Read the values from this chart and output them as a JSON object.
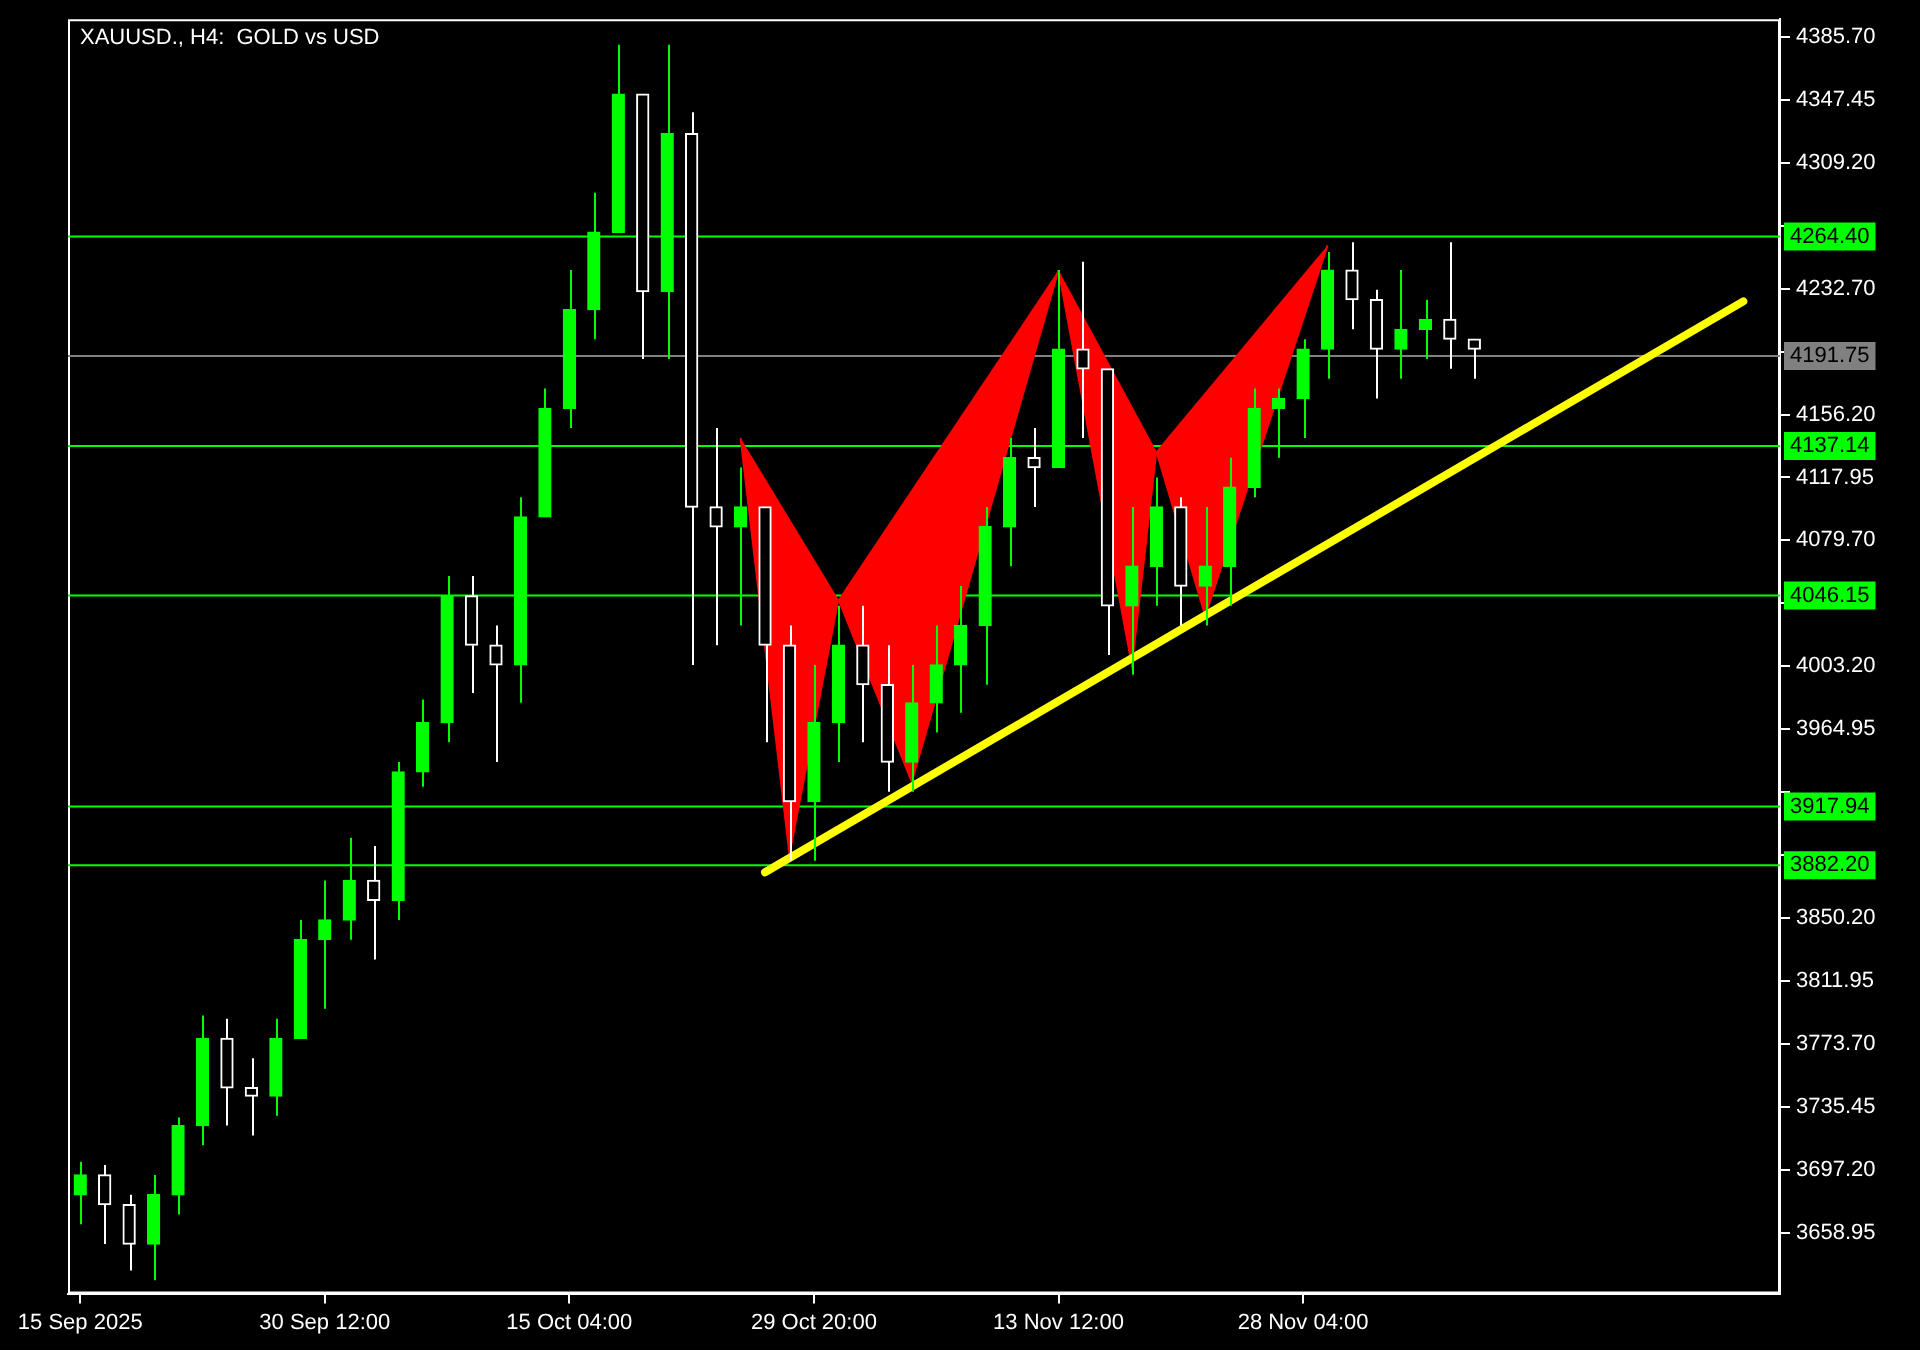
{
  "chart_data": {
    "type": "candlestick",
    "title": "XAUUSD., H4:  GOLD vs USD",
    "categories": [
      "15 Sep 2025",
      null,
      null,
      null,
      null,
      null,
      null,
      null,
      null,
      null,
      "30 Sep 12:00",
      null,
      null,
      null,
      null,
      null,
      null,
      null,
      null,
      null,
      "15 Oct 04:00",
      null,
      null,
      null,
      null,
      null,
      null,
      null,
      null,
      null,
      "29 Oct 20:00",
      null,
      null,
      null,
      null,
      null,
      null,
      null,
      null,
      null,
      "13 Nov 12:00",
      null,
      null,
      null,
      null,
      null,
      null,
      null,
      null,
      null,
      "28 Nov 04:00",
      null,
      null,
      null,
      null,
      null,
      null,
      null,
      null,
      null,
      null,
      null,
      null,
      null,
      null,
      null,
      null,
      null,
      null,
      null
    ],
    "ohlc": [
      [
        3682,
        3702,
        3664,
        3694
      ],
      [
        3694,
        3700,
        3652,
        3676
      ],
      [
        3676,
        3682,
        3636,
        3652
      ],
      [
        3652,
        3694,
        3630,
        3682
      ],
      [
        3682,
        3729,
        3670,
        3724
      ],
      [
        3724,
        3791,
        3712,
        3777
      ],
      [
        3777,
        3789,
        3724,
        3747
      ],
      [
        3747,
        3765,
        3718,
        3742
      ],
      [
        3742,
        3789,
        3730,
        3777
      ],
      [
        3777,
        3849,
        3777,
        3837
      ],
      [
        3837,
        3873,
        3795,
        3849
      ],
      [
        3849,
        3899,
        3837,
        3873
      ],
      [
        3873,
        3894,
        3825,
        3861
      ],
      [
        3861,
        3945,
        3849,
        3939
      ],
      [
        3939,
        3983,
        3930,
        3969
      ],
      [
        3969,
        4058,
        3957,
        4046
      ],
      [
        4046,
        4058,
        3987,
        4016
      ],
      [
        4016,
        4028,
        3945,
        4004
      ],
      [
        4004,
        4106,
        3981,
        4094
      ],
      [
        4094,
        4172,
        4094,
        4160
      ],
      [
        4160,
        4244,
        4148,
        4220
      ],
      [
        4220,
        4291,
        4202,
        4267
      ],
      [
        4267,
        4381,
        4267,
        4351
      ],
      [
        4351,
        4351,
        4190,
        4231
      ],
      [
        4231,
        4381,
        4190,
        4327
      ],
      [
        4327,
        4340,
        4004,
        4100
      ],
      [
        4100,
        4148,
        4016,
        4088
      ],
      [
        4088,
        4124,
        4028,
        4100
      ],
      [
        4100,
        4100,
        3957,
        4016
      ],
      [
        4016,
        4028,
        3885,
        3921
      ],
      [
        3921,
        4004,
        3885,
        3969
      ],
      [
        3969,
        4040,
        3945,
        4016
      ],
      [
        4016,
        4040,
        3957,
        3992
      ],
      [
        3992,
        4016,
        3927,
        3945
      ],
      [
        3945,
        4004,
        3927,
        3981
      ],
      [
        3981,
        4028,
        3963,
        4004
      ],
      [
        4004,
        4052,
        3975,
        4028
      ],
      [
        4028,
        4100,
        3992,
        4088
      ],
      [
        4088,
        4142,
        4064,
        4130
      ],
      [
        4130,
        4148,
        4100,
        4124
      ],
      [
        4124,
        4244,
        4124,
        4196
      ],
      [
        4196,
        4249,
        4142,
        4184
      ],
      [
        4184,
        4184,
        4010,
        4040
      ],
      [
        4040,
        4100,
        3998,
        4064
      ],
      [
        4064,
        4118,
        4040,
        4100
      ],
      [
        4100,
        4106,
        4028,
        4052
      ],
      [
        4052,
        4100,
        4028,
        4064
      ],
      [
        4064,
        4130,
        4040,
        4112
      ],
      [
        4112,
        4172,
        4106,
        4160
      ],
      [
        4160,
        4172,
        4130,
        4166
      ],
      [
        4166,
        4202,
        4142,
        4196
      ],
      [
        4196,
        4255,
        4178,
        4244
      ],
      [
        4244,
        4261,
        4208,
        4226
      ],
      [
        4226,
        4232,
        4166,
        4196
      ],
      [
        4196,
        4244,
        4178,
        4208
      ],
      [
        4208,
        4226,
        4190,
        4214
      ],
      [
        4214,
        4261,
        4184,
        4202
      ],
      [
        4202,
        4202,
        4178,
        4196
      ],
      null,
      null,
      null,
      null,
      null,
      null,
      null,
      null,
      null,
      null,
      null,
      null
    ],
    "colors": [
      "#00ff00",
      "#ffffff",
      "#ffffff",
      "#00ff00",
      "#00ff00",
      "#00ff00",
      "#ffffff",
      "#ffffff",
      "#00ff00",
      "#00ff00",
      "#00ff00",
      "#00ff00",
      "#ffffff",
      "#00ff00",
      "#00ff00",
      "#00ff00",
      "#ffffff",
      "#ffffff",
      "#00ff00",
      "#00ff00",
      "#00ff00",
      "#00ff00",
      "#00ff00",
      "#ffffff",
      "#00ff00",
      "#ffffff",
      "#ffffff",
      "#00ff00",
      "#ffffff",
      "#ffffff",
      "#00ff00",
      "#00ff00",
      "#ffffff",
      "#ffffff",
      "#00ff00",
      "#00ff00",
      "#00ff00",
      "#00ff00",
      "#00ff00",
      "#ffffff",
      "#00ff00",
      "#ffffff",
      "#ffffff",
      "#00ff00",
      "#00ff00",
      "#ffffff",
      "#00ff00",
      "#00ff00",
      "#00ff00",
      "#00ff00",
      "#00ff00",
      "#00ff00",
      "#ffffff",
      "#ffffff",
      "#00ff00",
      "#00ff00",
      "#ffffff",
      "#ffffff",
      null,
      null,
      null,
      null,
      null,
      null,
      null,
      null,
      null,
      null,
      null,
      null
    ],
    "series": [
      {
        "type": "line",
        "color": "#ffff00",
        "values": [
          null,
          null,
          null,
          null,
          null,
          null,
          null,
          null,
          null,
          null,
          null,
          null,
          null,
          null,
          null,
          null,
          null,
          null,
          null,
          null,
          null,
          null,
          null,
          null,
          null,
          null,
          null,
          null,
          3878,
          null,
          null,
          null,
          null,
          null,
          null,
          null,
          null,
          null,
          null,
          null,
          null,
          null,
          null,
          null,
          null,
          null,
          null,
          null,
          null,
          null,
          null,
          null,
          null,
          null,
          null,
          null,
          null,
          null,
          null,
          null,
          null,
          null,
          null,
          null,
          null,
          null,
          null,
          null,
          4225,
          null
        ]
      },
      {
        "type": "area",
        "color": "#ff0000",
        "values": [
          null,
          null,
          null,
          null,
          null,
          null,
          null,
          null,
          null,
          null,
          null,
          null,
          null,
          null,
          null,
          null,
          null,
          null,
          null,
          null,
          null,
          null,
          null,
          null,
          null,
          null,
          null,
          4142,
          null,
          3889,
          null,
          4044,
          null,
          null,
          null,
          null,
          null,
          null,
          null,
          null,
          null,
          null,
          null,
          null,
          null,
          null,
          null,
          null,
          null,
          null,
          null,
          null,
          null,
          null,
          null,
          null,
          null,
          null,
          null,
          null,
          null,
          null,
          null,
          null,
          null,
          null,
          null,
          null,
          null,
          null
        ]
      },
      {
        "type": "area",
        "color": "#ff0000",
        "values": [
          null,
          null,
          null,
          null,
          null,
          null,
          null,
          null,
          null,
          null,
          null,
          null,
          null,
          null,
          null,
          null,
          null,
          null,
          null,
          null,
          null,
          null,
          null,
          null,
          null,
          null,
          null,
          null,
          null,
          null,
          null,
          4044,
          null,
          null,
          3933,
          null,
          null,
          null,
          null,
          null,
          4244,
          null,
          null,
          null,
          null,
          null,
          null,
          null,
          null,
          null,
          null,
          null,
          null,
          null,
          null,
          null,
          null,
          null,
          null,
          null,
          null,
          null,
          null,
          null,
          null,
          null,
          null,
          null,
          null,
          null
        ]
      },
      {
        "type": "area",
        "color": "#ff0000",
        "values": [
          null,
          null,
          null,
          null,
          null,
          null,
          null,
          null,
          null,
          null,
          null,
          null,
          null,
          null,
          null,
          null,
          null,
          null,
          null,
          null,
          null,
          null,
          null,
          null,
          null,
          null,
          null,
          null,
          null,
          null,
          null,
          null,
          null,
          null,
          null,
          null,
          null,
          null,
          null,
          null,
          4244,
          null,
          null,
          4004,
          4134,
          null,
          null,
          null,
          null,
          null,
          null,
          null,
          null,
          null,
          null,
          null,
          null,
          null,
          null,
          null,
          null,
          null,
          null,
          null,
          null,
          null,
          null,
          null,
          null,
          null
        ]
      },
      {
        "type": "area",
        "color": "#ff0000",
        "values": [
          null,
          null,
          null,
          null,
          null,
          null,
          null,
          null,
          null,
          null,
          null,
          null,
          null,
          null,
          null,
          null,
          null,
          null,
          null,
          null,
          null,
          null,
          null,
          null,
          null,
          null,
          null,
          null,
          null,
          null,
          null,
          null,
          null,
          null,
          null,
          null,
          null,
          null,
          null,
          null,
          null,
          null,
          null,
          null,
          4134,
          null,
          4034,
          null,
          null,
          null,
          null,
          4259,
          null,
          null,
          null,
          null,
          null,
          null,
          null,
          null,
          null,
          null,
          null,
          null,
          null,
          null,
          null,
          null,
          null,
          null
        ]
      }
    ],
    "ylim": [
      3621.9,
      4396.5
    ],
    "yticks": [
      {
        "value": 3658.95,
        "label": "3658.95"
      },
      {
        "value": 3697.2,
        "label": "3697.20"
      },
      {
        "value": 3735.45,
        "label": "3735.45"
      },
      {
        "value": 3773.7,
        "label": "3773.70"
      },
      {
        "value": 3811.95,
        "label": "3811.95"
      },
      {
        "value": 3850.2,
        "label": "3850.20"
      },
      {
        "value": 3888.45,
        "label": null
      },
      {
        "value": 3926.7,
        "label": null
      },
      {
        "value": 3964.95,
        "label": "3964.95"
      },
      {
        "value": 4003.2,
        "label": "4003.20"
      },
      {
        "value": 4041.45,
        "label": null
      },
      {
        "value": 4079.7,
        "label": "4079.70"
      },
      {
        "value": 4117.95,
        "label": "4117.95"
      },
      {
        "value": 4156.2,
        "label": "4156.20"
      },
      {
        "value": 4194.45,
        "label": null
      },
      {
        "value": 4232.7,
        "label": "4232.70"
      },
      {
        "value": 4270.95,
        "label": null
      },
      {
        "value": 4309.2,
        "label": "4309.20"
      },
      {
        "value": 4347.45,
        "label": "4347.45"
      },
      {
        "value": 4385.7,
        "label": "4385.70"
      }
    ],
    "ref_lines": [
      {
        "axis": "y",
        "value": 4264.4,
        "label": "4264.40",
        "color": "#00ff00"
      },
      {
        "axis": "y",
        "value": 4191.75,
        "label": "4191.75",
        "color": "#808080"
      },
      {
        "axis": "y",
        "value": 4137.14,
        "label": "4137.14",
        "color": "#00ff00"
      },
      {
        "axis": "y",
        "value": 4046.15,
        "label": "4046.15",
        "color": "#00ff00"
      },
      {
        "axis": "y",
        "value": 3917.94,
        "label": "3917.94",
        "color": "#00ff00"
      },
      {
        "axis": "y",
        "value": 3882.2,
        "label": "3882.20",
        "color": "#00ff00"
      }
    ]
  }
}
